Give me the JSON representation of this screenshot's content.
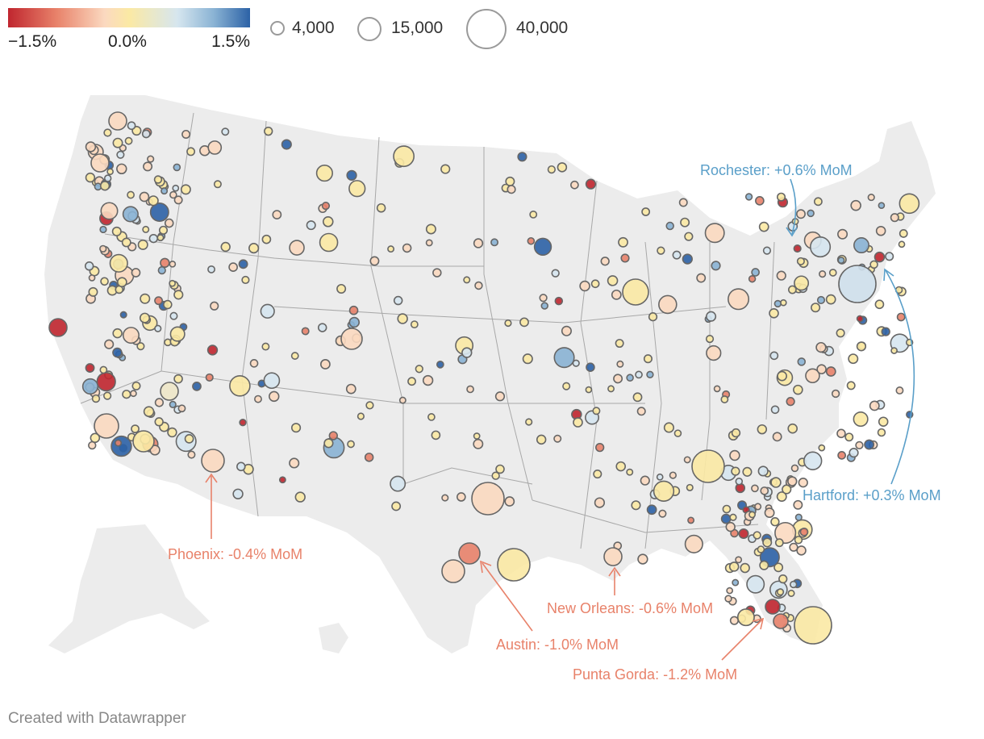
{
  "legend": {
    "color_scale": {
      "min_label": "−1.5%",
      "mid_label": "0.0%",
      "max_label": "1.5%",
      "colors": [
        "#c0262f",
        "#e8826a",
        "#fbd9c0",
        "#fbe9a4",
        "#d6e6ef",
        "#8ab3d4",
        "#2c62a6"
      ]
    },
    "size": [
      {
        "label": "4,000",
        "value": 4000
      },
      {
        "label": "15,000",
        "value": 15000
      },
      {
        "label": "40,000",
        "value": 40000
      }
    ]
  },
  "annotations": [
    {
      "text": "Rochester: +0.6% MoM",
      "sign": "positive",
      "value_pct": 0.6
    },
    {
      "text": "Hartford: +0.3% MoM",
      "sign": "positive",
      "value_pct": 0.3
    },
    {
      "text": "Phoenix: -0.4% MoM",
      "sign": "negative",
      "value_pct": -0.4
    },
    {
      "text": "New Orleans: -0.6% MoM",
      "sign": "negative",
      "value_pct": -0.6
    },
    {
      "text": "Austin: -1.0% MoM",
      "sign": "negative",
      "value_pct": -1.0
    },
    {
      "text": "Punta Gorda: -1.2% MoM",
      "sign": "negative",
      "value_pct": -1.2
    }
  ],
  "credit": "Created with Datawrapper"
}
